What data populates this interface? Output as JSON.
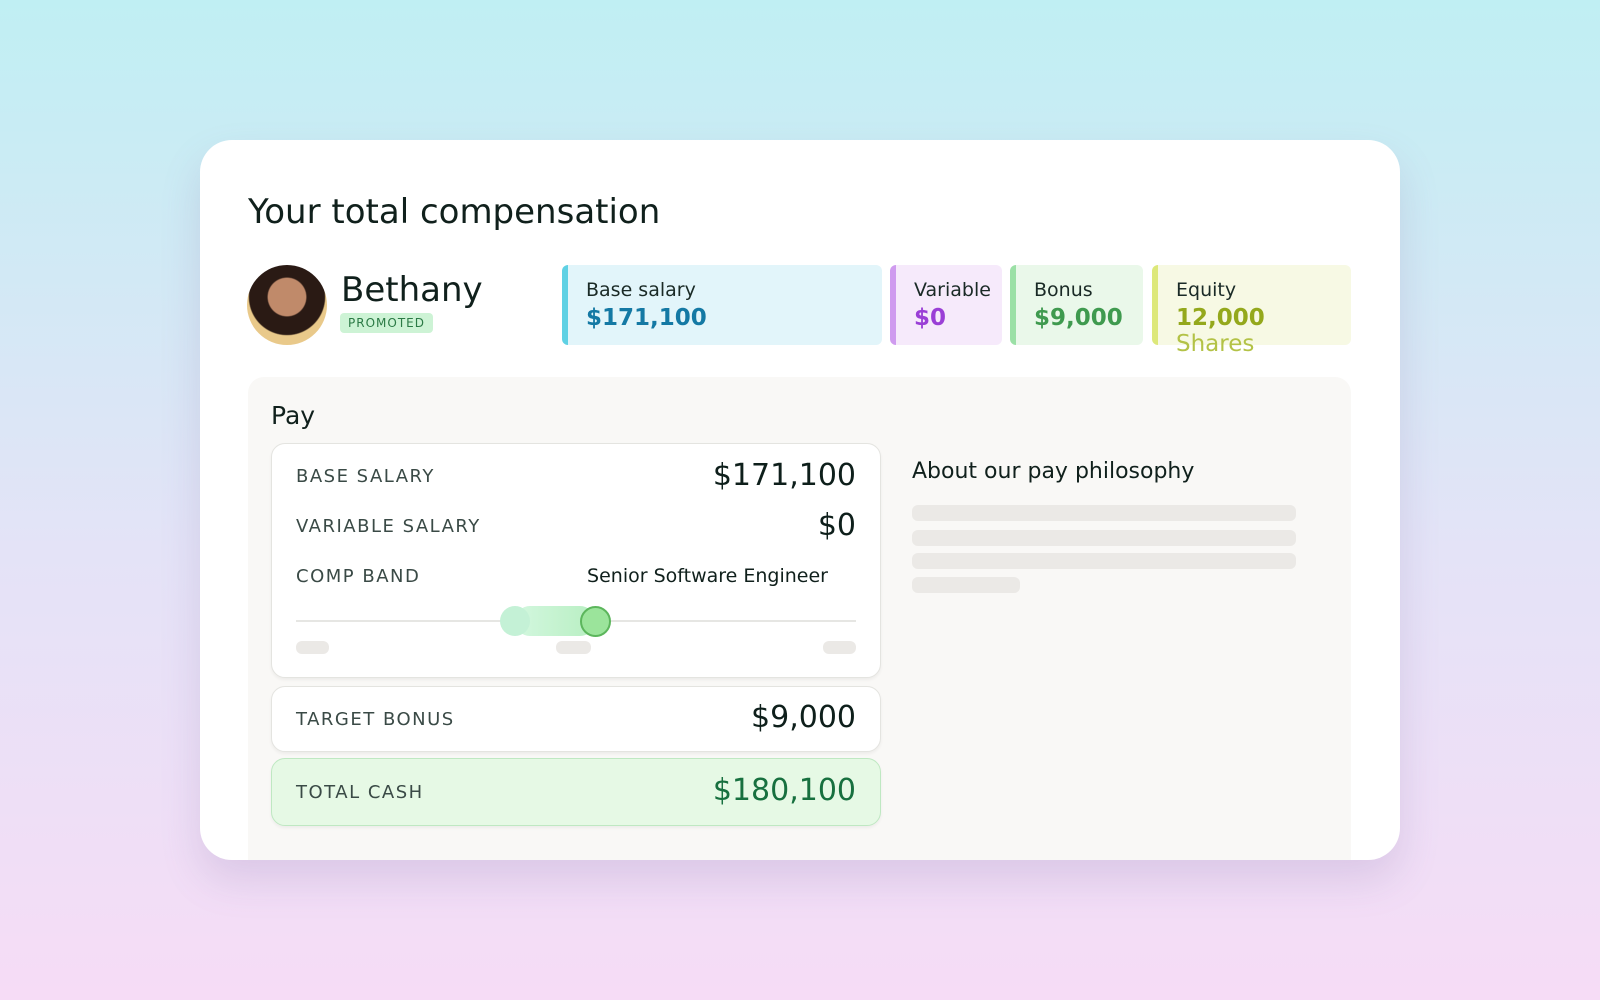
{
  "title": "Your total compensation",
  "profile": {
    "name": "Bethany",
    "badge": "PROMOTED"
  },
  "summary": [
    {
      "label": "Base salary",
      "value": "$171,100"
    },
    {
      "label": "Variable",
      "value": "$0"
    },
    {
      "label": "Bonus",
      "value": "$9,000"
    },
    {
      "label": "Equity",
      "value": "12,000",
      "unit": "Shares"
    }
  ],
  "pay": {
    "title": "Pay",
    "rows": [
      {
        "label": "BASE SALARY",
        "value": "$171,100"
      },
      {
        "label": "VARIABLE SALARY",
        "value": "$0"
      }
    ],
    "comp_band": {
      "label": "COMP BAND",
      "role": "Senior Software Engineer"
    },
    "target_bonus": {
      "label": "TARGET BONUS",
      "value": "$9,000"
    },
    "total_cash": {
      "label": "TOTAL CASH",
      "value": "$180,100"
    }
  },
  "philosophy": {
    "title": "About our pay philosophy"
  }
}
